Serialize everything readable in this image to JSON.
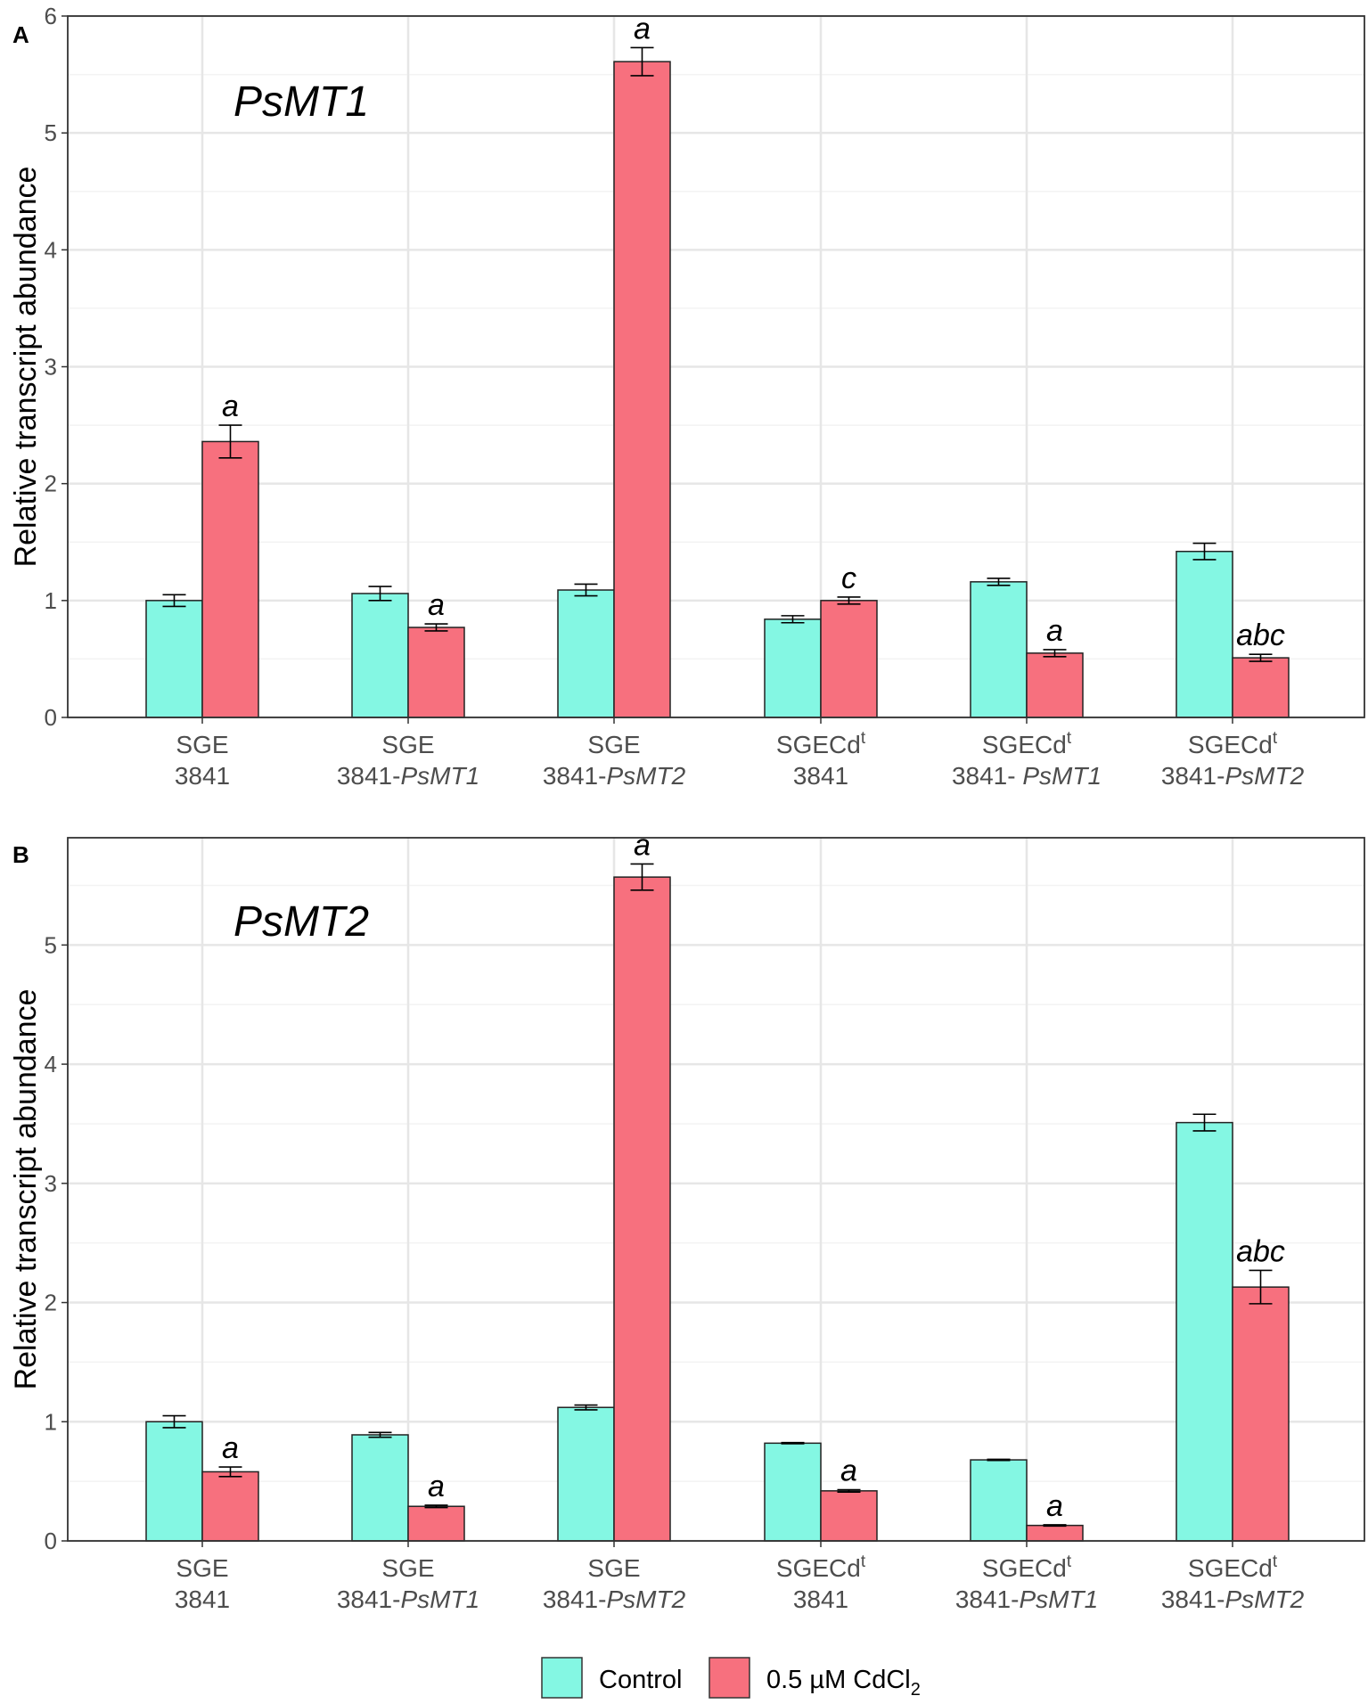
{
  "colors": {
    "control": "#84F7E3",
    "treatment": "#F7707E",
    "grid_major": "#e6e6e6",
    "grid_minor": "#f3f3f3"
  },
  "legend": {
    "control_label": "Control",
    "treatment_label_main": "0.5 µM CdCl",
    "treatment_label_sub": "2"
  },
  "chart_data": [
    {
      "type": "bar",
      "panel_label": "A",
      "title": "PsMT1",
      "ylabel": "Relative transcript abundance",
      "ylim": [
        0,
        6
      ],
      "yticks": [
        "0",
        "1",
        "2",
        "3",
        "4",
        "5",
        "6"
      ],
      "categories": [
        {
          "line1": "SGE",
          "line1_sup": "",
          "line2_pre": "3841",
          "line2_ital": ""
        },
        {
          "line1": "SGE",
          "line1_sup": "",
          "line2_pre": "3841-",
          "line2_ital": "PsMT1"
        },
        {
          "line1": "SGE",
          "line1_sup": "",
          "line2_pre": "3841-",
          "line2_ital": "PsMT2"
        },
        {
          "line1": "SGECd",
          "line1_sup": "t",
          "line2_pre": "3841",
          "line2_ital": ""
        },
        {
          "line1": "SGECd",
          "line1_sup": "t",
          "line2_pre": "3841- ",
          "line2_ital": "PsMT1"
        },
        {
          "line1": "SGECd",
          "line1_sup": "t",
          "line2_pre": "3841-",
          "line2_ital": "PsMT2"
        }
      ],
      "series": [
        {
          "name": "Control",
          "values": [
            1.0,
            1.06,
            1.09,
            0.84,
            1.16,
            1.42
          ],
          "errors": [
            0.05,
            0.06,
            0.05,
            0.03,
            0.03,
            0.07
          ]
        },
        {
          "name": "0.5 µM CdCl2",
          "values": [
            2.36,
            0.77,
            5.61,
            1.0,
            0.55,
            0.51
          ],
          "errors": [
            0.14,
            0.03,
            0.12,
            0.03,
            0.03,
            0.03
          ]
        }
      ],
      "significance": [
        "a",
        "a",
        "a",
        "c",
        "a",
        "abc"
      ]
    },
    {
      "type": "bar",
      "panel_label": "B",
      "title": "PsMT2",
      "ylabel": "Relative transcript abundance",
      "ylim": [
        0,
        5.9
      ],
      "yticks": [
        "0",
        "1",
        "2",
        "3",
        "4",
        "5"
      ],
      "categories": [
        {
          "line1": "SGE",
          "line1_sup": "",
          "line2_pre": "3841",
          "line2_ital": ""
        },
        {
          "line1": "SGE",
          "line1_sup": "",
          "line2_pre": "3841-",
          "line2_ital": "PsMT1"
        },
        {
          "line1": "SGE",
          "line1_sup": "",
          "line2_pre": "3841-",
          "line2_ital": "PsMT2"
        },
        {
          "line1": "SGECd",
          "line1_sup": "t",
          "line2_pre": "3841",
          "line2_ital": ""
        },
        {
          "line1": "SGECd",
          "line1_sup": "t",
          "line2_pre": "3841-",
          "line2_ital": "PsMT1"
        },
        {
          "line1": "SGECd",
          "line1_sup": "t",
          "line2_pre": "3841-",
          "line2_ital": "PsMT2"
        }
      ],
      "series": [
        {
          "name": "Control",
          "values": [
            1.0,
            0.89,
            1.12,
            0.82,
            0.68,
            3.51
          ],
          "errors": [
            0.05,
            0.02,
            0.02,
            0.005,
            0.005,
            0.07
          ]
        },
        {
          "name": "0.5 µM CdCl2",
          "values": [
            0.58,
            0.29,
            5.57,
            0.42,
            0.13,
            2.13
          ],
          "errors": [
            0.04,
            0.01,
            0.11,
            0.01,
            0.005,
            0.14
          ]
        }
      ],
      "significance": [
        "a",
        "a",
        "a",
        "a",
        "a",
        "abc"
      ]
    }
  ]
}
